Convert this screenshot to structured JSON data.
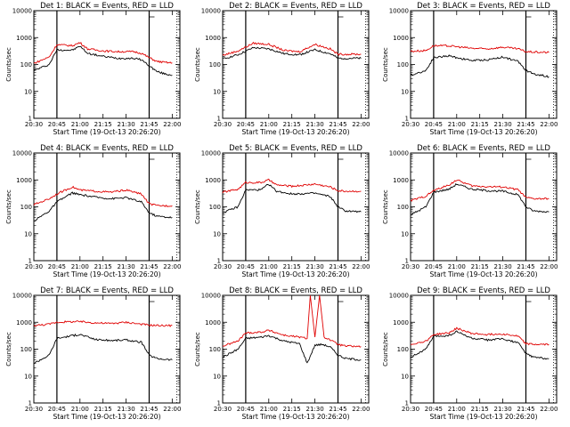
{
  "figure": {
    "x_axis_label": "Start Time (19-Oct-13 20:26:20)",
    "y_axis_label": "Counts/sec",
    "panel_title_suffix": "BLACK = Events, RED = LLD",
    "colors": {
      "events": "#000000",
      "lld": "#e00000"
    }
  },
  "chart_data": [
    {
      "type": "line",
      "title": "Det 1: BLACK = Events, RED = LLD",
      "xlabel": "Start Time (19-Oct-13 20:26:20)",
      "ylabel": "Counts/sec",
      "x_ticks": [
        "20:30",
        "20:45",
        "21:00",
        "21:15",
        "21:30",
        "21:45",
        "22:00"
      ],
      "y_ticks": [
        "1",
        "10",
        "100",
        "1000",
        "10000"
      ],
      "y_scale": "log",
      "ylim": [
        1,
        10000
      ],
      "xlim": [
        "20:30",
        "22:05"
      ],
      "markers": {
        "solid": [
          "20:45",
          "21:45"
        ],
        "dotted": [
          "22:03"
        ]
      },
      "series": [
        {
          "name": "BLACK = Events",
          "color": "#000000",
          "x": [
            "20:30",
            "20:40",
            "20:45",
            "20:55",
            "21:00",
            "21:05",
            "21:15",
            "21:25",
            "21:35",
            "21:40",
            "21:45",
            "21:50",
            "21:55",
            "22:00"
          ],
          "y": [
            60,
            100,
            350,
            340,
            480,
            260,
            200,
            170,
            170,
            150,
            90,
            55,
            45,
            40
          ]
        },
        {
          "name": "RED = LLD",
          "color": "#e00000",
          "x": [
            "20:30",
            "20:40",
            "20:45",
            "20:55",
            "21:00",
            "21:05",
            "21:15",
            "21:25",
            "21:35",
            "21:40",
            "21:45",
            "21:50",
            "21:55",
            "22:00"
          ],
          "y": [
            110,
            190,
            550,
            500,
            650,
            380,
            320,
            300,
            300,
            260,
            180,
            130,
            120,
            115
          ]
        }
      ]
    },
    {
      "type": "line",
      "title": "Det 2: BLACK = Events, RED = LLD",
      "xlabel": "Start Time (19-Oct-13 20:26:20)",
      "ylabel": "Counts/sec",
      "x_ticks": [
        "20:30",
        "20:45",
        "21:00",
        "21:15",
        "21:30",
        "21:45",
        "22:00"
      ],
      "y_ticks": [
        "1",
        "10",
        "100",
        "1000",
        "10000"
      ],
      "y_scale": "log",
      "ylim": [
        1,
        10000
      ],
      "xlim": [
        "20:30",
        "22:05"
      ],
      "markers": {
        "solid": [
          "20:45",
          "21:45"
        ],
        "dotted": [
          "22:03"
        ]
      },
      "series": [
        {
          "name": "BLACK = Events",
          "color": "#000000",
          "x": [
            "20:30",
            "20:40",
            "20:50",
            "21:00",
            "21:10",
            "21:20",
            "21:30",
            "21:40",
            "21:45",
            "21:50",
            "22:00"
          ],
          "y": [
            160,
            230,
            420,
            380,
            250,
            230,
            350,
            250,
            170,
            170,
            170
          ]
        },
        {
          "name": "RED = LLD",
          "color": "#e00000",
          "x": [
            "20:30",
            "20:40",
            "20:50",
            "21:00",
            "21:10",
            "21:20",
            "21:30",
            "21:40",
            "21:45",
            "21:50",
            "22:00"
          ],
          "y": [
            220,
            320,
            620,
            560,
            330,
            300,
            560,
            380,
            240,
            240,
            240
          ]
        }
      ]
    },
    {
      "type": "line",
      "title": "Det 3: BLACK = Events, RED = LLD",
      "xlabel": "Start Time (19-Oct-13 20:26:20)",
      "ylabel": "Counts/sec",
      "x_ticks": [
        "20:30",
        "20:45",
        "21:00",
        "21:15",
        "21:30",
        "21:45",
        "22:00"
      ],
      "y_ticks": [
        "1",
        "10",
        "100",
        "1000",
        "10000"
      ],
      "y_scale": "log",
      "ylim": [
        1,
        10000
      ],
      "xlim": [
        "20:30",
        "22:05"
      ],
      "markers": {
        "solid": [
          "20:45",
          "21:45"
        ],
        "dotted": [
          "22:03"
        ]
      },
      "series": [
        {
          "name": "BLACK = Events",
          "color": "#000000",
          "x": [
            "20:30",
            "20:40",
            "20:45",
            "20:55",
            "21:00",
            "21:10",
            "21:20",
            "21:30",
            "21:40",
            "21:45",
            "21:50",
            "22:00"
          ],
          "y": [
            40,
            60,
            180,
            210,
            180,
            140,
            150,
            190,
            130,
            60,
            45,
            35
          ]
        },
        {
          "name": "RED = LLD",
          "color": "#e00000",
          "x": [
            "20:30",
            "20:40",
            "20:45",
            "20:55",
            "21:00",
            "21:10",
            "21:20",
            "21:30",
            "21:40",
            "21:45",
            "21:50",
            "22:00"
          ],
          "y": [
            310,
            330,
            500,
            490,
            460,
            400,
            380,
            440,
            380,
            300,
            290,
            280
          ]
        }
      ]
    },
    {
      "type": "line",
      "title": "Det 4: BLACK = Events, RED = LLD",
      "xlabel": "Start Time (19-Oct-13 20:26:20)",
      "ylabel": "Counts/sec",
      "x_ticks": [
        "20:30",
        "20:45",
        "21:00",
        "21:15",
        "21:30",
        "21:45",
        "22:00"
      ],
      "y_ticks": [
        "1",
        "10",
        "100",
        "1000",
        "10000"
      ],
      "y_scale": "log",
      "ylim": [
        1,
        10000
      ],
      "xlim": [
        "20:30",
        "22:05"
      ],
      "markers": {
        "solid": [
          "20:45",
          "21:45"
        ],
        "dotted": [
          "22:03"
        ]
      },
      "series": [
        {
          "name": "BLACK = Events",
          "color": "#000000",
          "x": [
            "20:30",
            "20:40",
            "20:45",
            "20:55",
            "21:00",
            "21:10",
            "21:20",
            "21:30",
            "21:40",
            "21:45",
            "21:50",
            "22:00"
          ],
          "y": [
            30,
            70,
            150,
            330,
            280,
            230,
            200,
            220,
            150,
            60,
            45,
            40
          ]
        },
        {
          "name": "RED = LLD",
          "color": "#e00000",
          "x": [
            "20:30",
            "20:40",
            "20:45",
            "20:55",
            "21:00",
            "21:10",
            "21:20",
            "21:30",
            "21:40",
            "21:45",
            "21:50",
            "22:00"
          ],
          "y": [
            120,
            200,
            300,
            550,
            420,
            380,
            350,
            420,
            300,
            130,
            110,
            110
          ]
        }
      ]
    },
    {
      "type": "line",
      "title": "Det 5: BLACK = Events, RED = LLD",
      "xlabel": "Start Time (19-Oct-13 20:26:20)",
      "ylabel": "Counts/sec",
      "x_ticks": [
        "20:30",
        "20:45",
        "21:00",
        "21:15",
        "21:30",
        "21:45",
        "22:00"
      ],
      "y_ticks": [
        "1",
        "10",
        "100",
        "1000",
        "10000"
      ],
      "y_scale": "log",
      "ylim": [
        1,
        10000
      ],
      "xlim": [
        "20:30",
        "22:05"
      ],
      "markers": {
        "solid": [
          "20:45",
          "21:45"
        ],
        "dotted": [
          "22:03"
        ]
      },
      "series": [
        {
          "name": "BLACK = Events",
          "color": "#000000",
          "x": [
            "20:30",
            "20:40",
            "20:45",
            "20:55",
            "21:00",
            "21:05",
            "21:15",
            "21:30",
            "21:40",
            "21:45",
            "21:50",
            "22:00"
          ],
          "y": [
            60,
            100,
            420,
            430,
            700,
            380,
            300,
            320,
            240,
            100,
            70,
            65
          ]
        },
        {
          "name": "RED = LLD",
          "color": "#e00000",
          "x": [
            "20:30",
            "20:40",
            "20:45",
            "20:55",
            "21:00",
            "21:05",
            "21:15",
            "21:30",
            "21:40",
            "21:45",
            "21:50",
            "22:00"
          ],
          "y": [
            350,
            450,
            800,
            800,
            1000,
            650,
            580,
            700,
            550,
            400,
            380,
            380
          ]
        }
      ]
    },
    {
      "type": "line",
      "title": "Det 6: BLACK = Events, RED = LLD",
      "xlabel": "Start Time (19-Oct-13 20:26:20)",
      "ylabel": "Counts/sec",
      "x_ticks": [
        "20:30",
        "20:45",
        "21:00",
        "21:15",
        "21:30",
        "21:45",
        "22:00"
      ],
      "y_ticks": [
        "1",
        "10",
        "100",
        "1000",
        "10000"
      ],
      "y_scale": "log",
      "ylim": [
        1,
        10000
      ],
      "xlim": [
        "20:30",
        "22:05"
      ],
      "markers": {
        "solid": [
          "20:45",
          "21:45"
        ],
        "dotted": [
          "22:03"
        ]
      },
      "series": [
        {
          "name": "BLACK = Events",
          "color": "#000000",
          "x": [
            "20:30",
            "20:40",
            "20:45",
            "20:55",
            "21:00",
            "21:10",
            "21:20",
            "21:30",
            "21:40",
            "21:45",
            "21:50",
            "22:00"
          ],
          "y": [
            50,
            100,
            350,
            450,
            700,
            450,
            400,
            380,
            280,
            100,
            70,
            65
          ]
        },
        {
          "name": "RED = LLD",
          "color": "#e00000",
          "x": [
            "20:30",
            "20:40",
            "20:45",
            "20:55",
            "21:00",
            "21:10",
            "21:20",
            "21:30",
            "21:40",
            "21:45",
            "21:50",
            "22:00"
          ],
          "y": [
            170,
            250,
            400,
            650,
            1000,
            600,
            560,
            550,
            430,
            220,
            200,
            200
          ]
        }
      ]
    },
    {
      "type": "line",
      "title": "Det 7: BLACK = Events, RED = LLD",
      "xlabel": "Start Time (19-Oct-13 20:26:20)",
      "ylabel": "Counts/sec",
      "x_ticks": [
        "20:30",
        "20:45",
        "21:00",
        "21:15",
        "21:30",
        "21:45",
        "22:00"
      ],
      "y_ticks": [
        "1",
        "10",
        "100",
        "1000",
        "10000"
      ],
      "y_scale": "log",
      "ylim": [
        1,
        10000
      ],
      "xlim": [
        "20:30",
        "22:05"
      ],
      "markers": {
        "solid": [
          "20:45",
          "21:45"
        ],
        "dotted": [
          "22:03"
        ]
      },
      "series": [
        {
          "name": "BLACK = Events",
          "color": "#000000",
          "x": [
            "20:30",
            "20:40",
            "20:45",
            "20:55",
            "21:00",
            "21:10",
            "21:20",
            "21:30",
            "21:40",
            "21:45",
            "21:50",
            "22:00"
          ],
          "y": [
            30,
            60,
            250,
            320,
            350,
            230,
            210,
            220,
            180,
            60,
            45,
            40
          ]
        },
        {
          "name": "RED = LLD",
          "color": "#e00000",
          "x": [
            "20:30",
            "20:40",
            "20:45",
            "20:55",
            "21:00",
            "21:10",
            "21:20",
            "21:30",
            "21:40",
            "21:45",
            "21:50",
            "22:00"
          ],
          "y": [
            750,
            850,
            1000,
            1050,
            1050,
            950,
            900,
            1000,
            850,
            780,
            760,
            750
          ]
        }
      ]
    },
    {
      "type": "line",
      "title": "Det 8: BLACK = Events, RED = LLD",
      "xlabel": "Start Time (19-Oct-13 20:26:20)",
      "ylabel": "Counts/sec",
      "x_ticks": [
        "20:30",
        "20:45",
        "21:00",
        "21:15",
        "21:30",
        "21:45",
        "22:00"
      ],
      "y_ticks": [
        "1",
        "10",
        "100",
        "1000",
        "10000"
      ],
      "y_scale": "log",
      "ylim": [
        1,
        10000
      ],
      "xlim": [
        "20:30",
        "22:05"
      ],
      "markers": {
        "solid": [
          "20:45",
          "21:45"
        ],
        "dotted": [
          "22:03"
        ]
      },
      "series": [
        {
          "name": "BLACK = Events",
          "color": "#000000",
          "x": [
            "20:30",
            "20:40",
            "20:45",
            "20:55",
            "21:00",
            "21:10",
            "21:20",
            "21:25",
            "21:30",
            "21:35",
            "21:40",
            "21:45",
            "21:50",
            "22:00"
          ],
          "y": [
            50,
            100,
            250,
            280,
            320,
            200,
            160,
            30,
            140,
            150,
            120,
            60,
            45,
            40
          ]
        },
        {
          "name": "RED = LLD",
          "color": "#e00000",
          "x": [
            "20:30",
            "20:40",
            "20:45",
            "20:55",
            "21:00",
            "21:10",
            "21:20",
            "21:25",
            "21:27",
            "21:30",
            "21:33",
            "21:36",
            "21:40",
            "21:45",
            "21:50",
            "22:00"
          ],
          "y": [
            130,
            200,
            400,
            430,
            500,
            330,
            280,
            250,
            10000,
            280,
            10000,
            280,
            220,
            150,
            130,
            125
          ]
        }
      ]
    },
    {
      "type": "line",
      "title": "Det 9: BLACK = Events, RED = LLD",
      "xlabel": "Start Time (19-Oct-13 20:26:20)",
      "ylabel": "Counts/sec",
      "x_ticks": [
        "20:30",
        "20:45",
        "21:00",
        "21:15",
        "21:30",
        "21:45",
        "22:00"
      ],
      "y_ticks": [
        "1",
        "10",
        "100",
        "1000",
        "10000"
      ],
      "y_scale": "log",
      "ylim": [
        1,
        10000
      ],
      "xlim": [
        "20:30",
        "22:05"
      ],
      "markers": {
        "solid": [
          "20:45",
          "21:45"
        ],
        "dotted": [
          "22:03"
        ]
      },
      "series": [
        {
          "name": "BLACK = Events",
          "color": "#000000",
          "x": [
            "20:30",
            "20:40",
            "20:45",
            "20:55",
            "21:00",
            "21:10",
            "21:20",
            "21:30",
            "21:40",
            "21:45",
            "21:50",
            "22:00"
          ],
          "y": [
            50,
            100,
            300,
            320,
            450,
            250,
            220,
            240,
            170,
            70,
            50,
            45
          ]
        },
        {
          "name": "RED = LLD",
          "color": "#e00000",
          "x": [
            "20:30",
            "20:40",
            "20:45",
            "20:55",
            "21:00",
            "21:10",
            "21:20",
            "21:30",
            "21:40",
            "21:45",
            "21:50",
            "22:00"
          ],
          "y": [
            150,
            200,
            350,
            400,
            600,
            380,
            350,
            370,
            300,
            160,
            150,
            150
          ]
        }
      ]
    }
  ]
}
